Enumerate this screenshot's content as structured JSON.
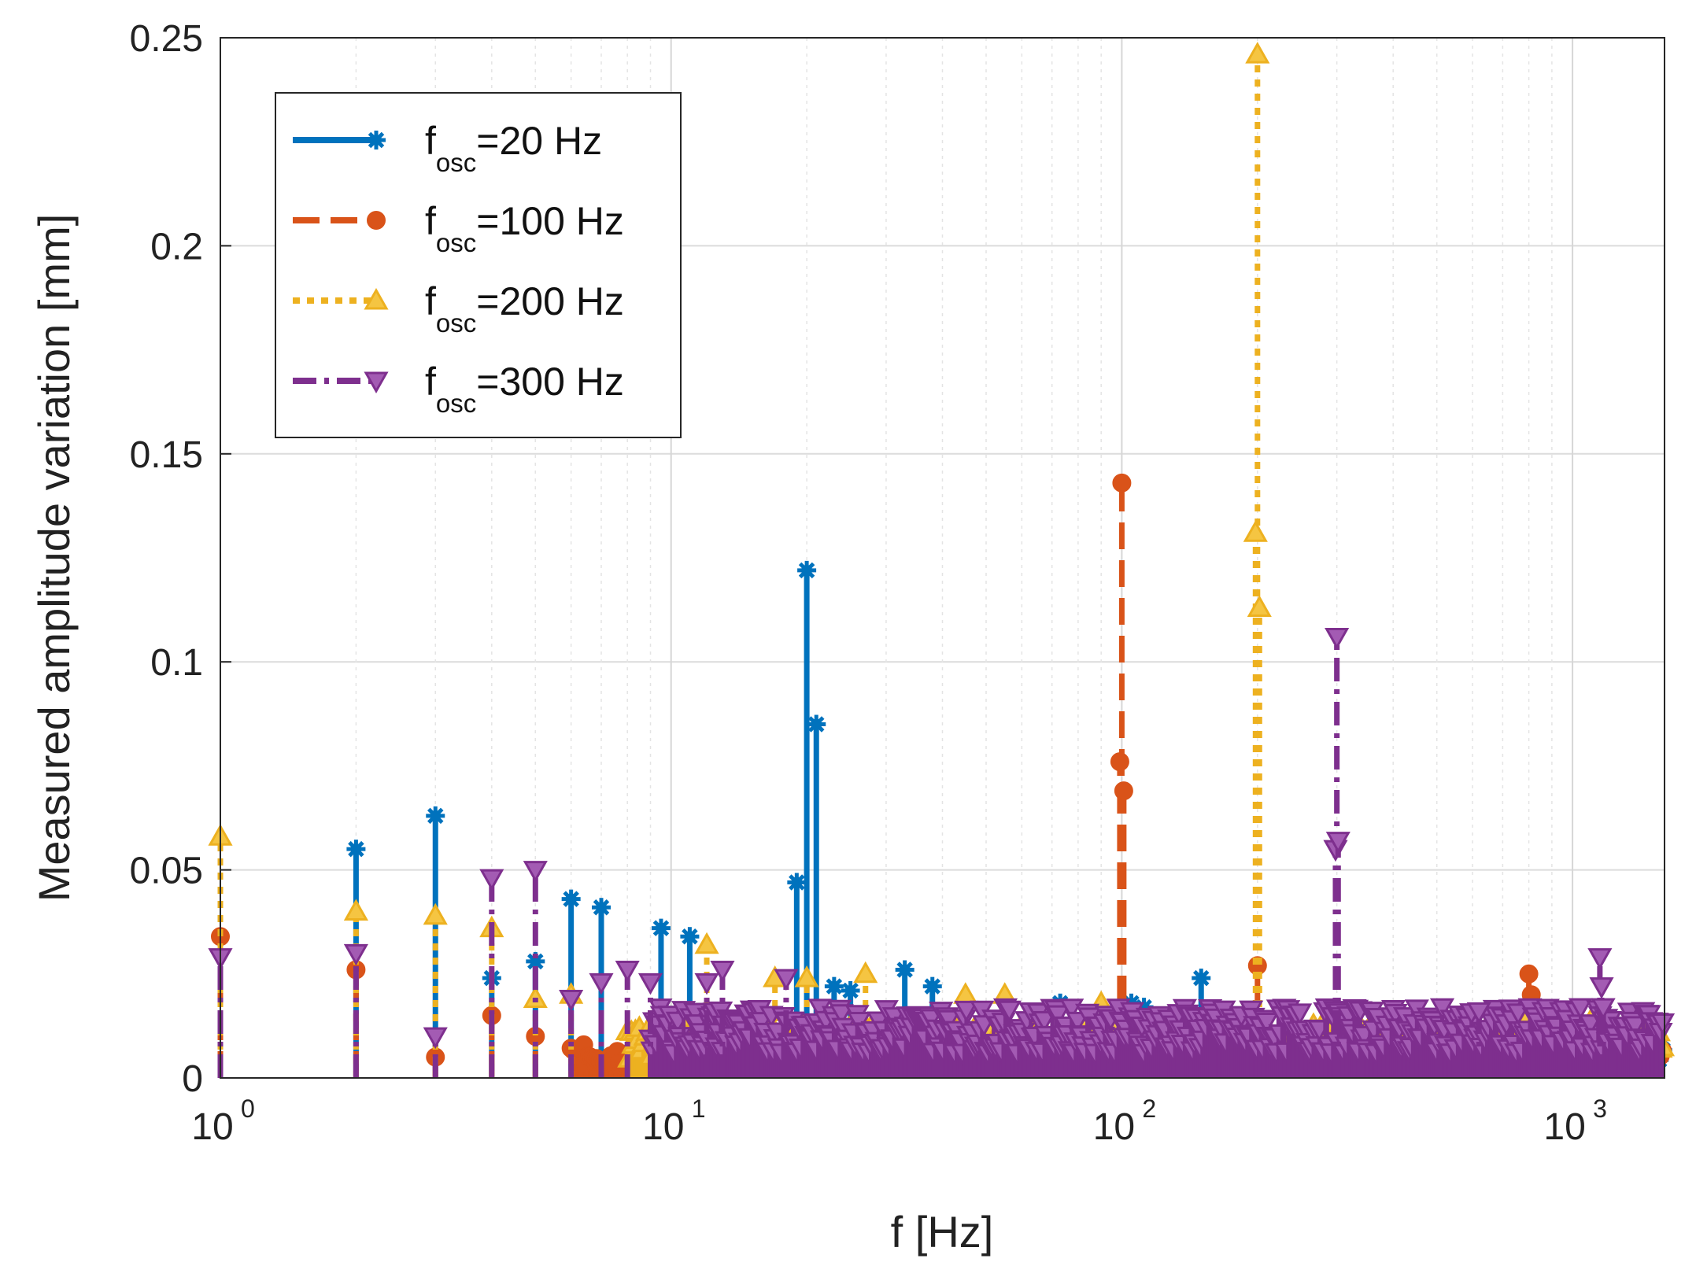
{
  "chart_data": {
    "type": "stem",
    "title": "",
    "xlabel": "f [Hz]",
    "ylabel": "Measured amplitude variation [mm]",
    "xscale": "log",
    "xlim": [
      1,
      1600
    ],
    "ylim": [
      0,
      0.25
    ],
    "grid": true,
    "legend_position": "top-left",
    "yticks": [
      {
        "value": 0,
        "label": "0"
      },
      {
        "value": 0.05,
        "label": "0.05"
      },
      {
        "value": 0.1,
        "label": "0.1"
      },
      {
        "value": 0.15,
        "label": "0.15"
      },
      {
        "value": 0.2,
        "label": "0.2"
      },
      {
        "value": 0.25,
        "label": "0.25"
      }
    ],
    "xticks": [
      {
        "value": 1,
        "base": "10",
        "exp": "0"
      },
      {
        "value": 10,
        "base": "10",
        "exp": "1"
      },
      {
        "value": 100,
        "base": "10",
        "exp": "2"
      },
      {
        "value": 1000,
        "base": "10",
        "exp": "3"
      }
    ],
    "series": [
      {
        "name": "f_osc=20 Hz",
        "label_main": "f",
        "label_sub": "osc",
        "label_rest": "=20 Hz",
        "color": "#0072BD",
        "linestyle": "solid",
        "marker": "asterisk",
        "points": [
          [
            2,
            0.055
          ],
          [
            3,
            0.063
          ],
          [
            4,
            0.024
          ],
          [
            5,
            0.028
          ],
          [
            6,
            0.043
          ],
          [
            7,
            0.041
          ],
          [
            9.5,
            0.036
          ],
          [
            11,
            0.034
          ],
          [
            19,
            0.047
          ],
          [
            20,
            0.122
          ],
          [
            21,
            0.085
          ],
          [
            23,
            0.022
          ],
          [
            25,
            0.021
          ],
          [
            33,
            0.026
          ],
          [
            38,
            0.022
          ],
          [
            73,
            0.018
          ],
          [
            105,
            0.018
          ],
          [
            112,
            0.017
          ],
          [
            150,
            0.024
          ]
        ],
        "noise": {
          "from": 14,
          "to": 1600,
          "max": 0.008
        }
      },
      {
        "name": "f_osc=100 Hz",
        "label_main": "f",
        "label_sub": "osc",
        "label_rest": "=100 Hz",
        "color": "#D95319",
        "linestyle": "dashed",
        "marker": "circle",
        "points": [
          [
            1,
            0.034
          ],
          [
            2,
            0.026
          ],
          [
            3,
            0.005
          ],
          [
            4,
            0.015
          ],
          [
            5,
            0.01
          ],
          [
            100,
            0.143
          ],
          [
            99,
            0.076
          ],
          [
            101,
            0.069
          ],
          [
            200,
            0.027
          ],
          [
            800,
            0.025
          ],
          [
            810,
            0.02
          ]
        ],
        "noise": {
          "from": 6,
          "to": 1600,
          "max": 0.008
        }
      },
      {
        "name": "f_osc=200 Hz",
        "label_main": "f",
        "label_sub": "osc",
        "label_rest": "=200 Hz",
        "color": "#EDB120",
        "linestyle": "dotted",
        "marker": "triangle-up",
        "points": [
          [
            1,
            0.058
          ],
          [
            2,
            0.04
          ],
          [
            3,
            0.039
          ],
          [
            4,
            0.036
          ],
          [
            5,
            0.019
          ],
          [
            6,
            0.02
          ],
          [
            12,
            0.032
          ],
          [
            17,
            0.024
          ],
          [
            20,
            0.024
          ],
          [
            27,
            0.025
          ],
          [
            200,
            0.246
          ],
          [
            198,
            0.131
          ],
          [
            202,
            0.113
          ],
          [
            45,
            0.02
          ],
          [
            55,
            0.02
          ],
          [
            90,
            0.018
          ],
          [
            800,
            0.015
          ],
          [
            1100,
            0.014
          ]
        ],
        "noise": {
          "from": 8,
          "to": 1600,
          "max": 0.013
        }
      },
      {
        "name": "f_osc=300 Hz",
        "label_main": "f",
        "label_sub": "osc",
        "label_rest": "=300 Hz",
        "color": "#7E2F8E",
        "linestyle": "dashdot",
        "marker": "triangle-down",
        "points": [
          [
            1,
            0.029
          ],
          [
            2,
            0.03
          ],
          [
            3,
            0.01
          ],
          [
            4,
            0.048
          ],
          [
            5,
            0.05
          ],
          [
            6,
            0.019
          ],
          [
            7,
            0.023
          ],
          [
            8,
            0.026
          ],
          [
            9,
            0.023
          ],
          [
            12,
            0.023
          ],
          [
            13,
            0.026
          ],
          [
            18,
            0.024
          ],
          [
            300,
            0.106
          ],
          [
            298,
            0.055
          ],
          [
            302,
            0.057
          ],
          [
            620,
            0.016
          ],
          [
            1150,
            0.029
          ],
          [
            1160,
            0.022
          ],
          [
            1170,
            0.017
          ]
        ],
        "noise": {
          "from": 9,
          "to": 1600,
          "max": 0.017
        }
      }
    ]
  }
}
